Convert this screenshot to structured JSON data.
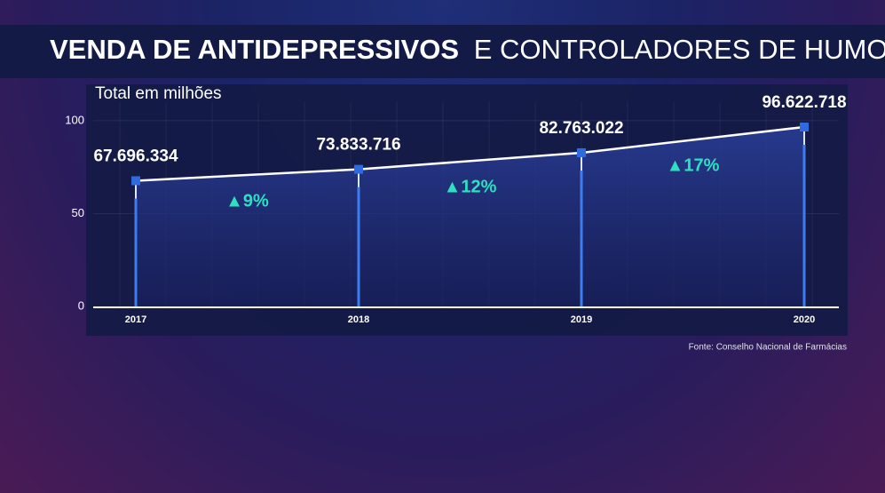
{
  "chart_data": {
    "type": "line",
    "title": [
      "VENDA DE ANTIDEPRESSIVOS",
      "E CONTROLADORES DE HUMOR"
    ],
    "subtitle": "Total em milhões",
    "source": "Fonte: Conselho Nacional de Farmácias",
    "categories": [
      "2017",
      "2018",
      "2019",
      "2020"
    ],
    "series": [
      {
        "name": "Vendas",
        "color": "#ffffff",
        "values": [
          67.696334,
          73.833716,
          82.763022,
          96.622718
        ],
        "value_labels": [
          "67.696.334",
          "73.833.716",
          "82.763.022",
          "96.622.718"
        ]
      }
    ],
    "annotations": [
      "▲9%",
      "▲12%",
      "▲17%"
    ],
    "annotation_color": "#2de0c0",
    "marker_color": "#2f6be0",
    "ylim": [
      0,
      110
    ],
    "yticks": [
      0,
      50,
      100
    ],
    "grid": true
  }
}
